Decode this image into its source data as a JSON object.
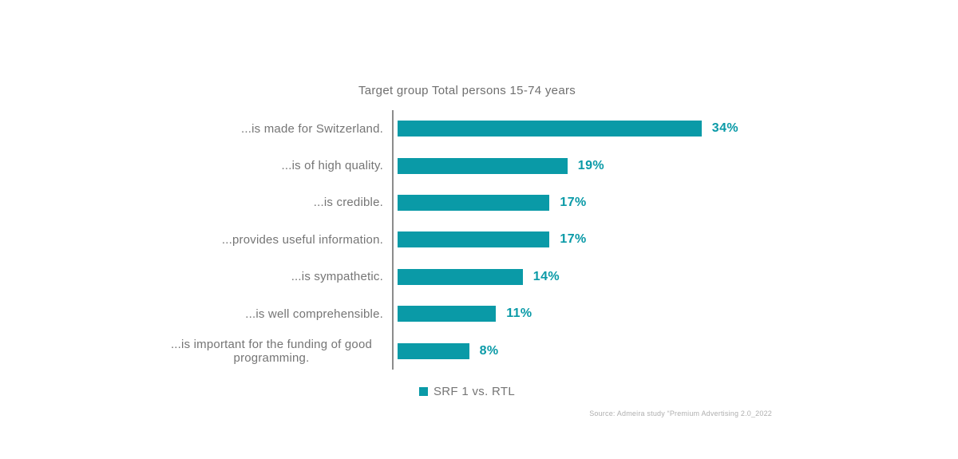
{
  "chart_data": {
    "type": "bar",
    "orientation": "horizontal",
    "title": "Target group Total persons 15-74 years",
    "categories": [
      "...is made for Switzerland.",
      "...is of high quality.",
      "...is credible.",
      "...provides useful information.",
      "...is sympathetic.",
      "...is well comprehensible.",
      "...is important for the funding of good programming."
    ],
    "values": [
      34,
      19,
      17,
      17,
      14,
      11,
      8
    ],
    "value_labels": [
      "34%",
      "19%",
      "17%",
      "17%",
      "14%",
      "11%",
      "8%"
    ],
    "unit": "%",
    "series_name": "SRF 1 vs. RTL",
    "xlim": [
      0,
      36
    ],
    "grid": false,
    "legend_position": "bottom-center",
    "bar_color": "#0A9AA7",
    "value_label_color": "#0A9AA7",
    "axis_line_color": "#8C8C8C",
    "label_color": "#757575",
    "source": "Source: Admeira study “Premium Advertising 2.0_2022"
  }
}
